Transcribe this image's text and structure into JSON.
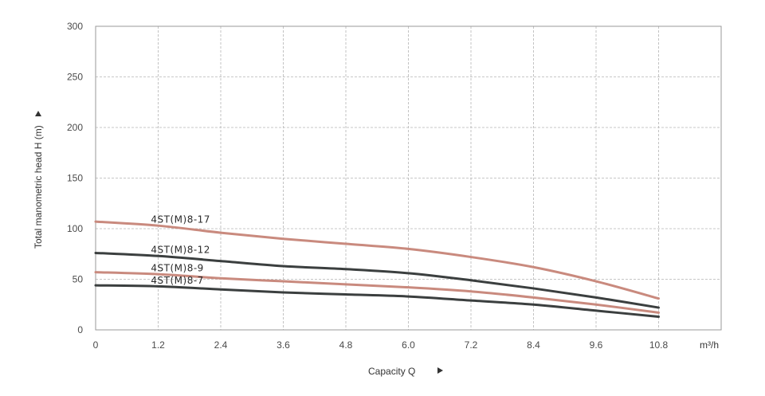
{
  "chart_data": {
    "type": "line",
    "xlabel": "Capacity Q",
    "xunit": "m³/h",
    "ylabel": "Total manometric head H (m)",
    "xlim": [
      0,
      12
    ],
    "ylim": [
      0,
      300
    ],
    "x_ticks": [
      "0",
      "1.2",
      "2.4",
      "3.6",
      "4.8",
      "6.0",
      "7.2",
      "8.4",
      "9.6",
      "10.8"
    ],
    "y_ticks": [
      "0",
      "50",
      "100",
      "150",
      "200",
      "250",
      "300"
    ],
    "grid": true,
    "x": [
      0,
      1.2,
      2.4,
      3.6,
      4.8,
      6.0,
      7.2,
      8.4,
      9.6,
      10.8
    ],
    "series": [
      {
        "name": "4ST(M)8-17",
        "color": "#c98a7e",
        "values": [
          107,
          103,
          96,
          90,
          85,
          80,
          72,
          62,
          48,
          31
        ]
      },
      {
        "name": "4ST(M)8-12",
        "color": "#3b3f3f",
        "values": [
          76,
          73,
          68,
          63,
          60,
          56,
          49,
          41,
          32,
          22
        ]
      },
      {
        "name": "4ST(M)8-9",
        "color": "#c98a7e",
        "values": [
          57,
          55,
          51,
          48,
          45,
          42,
          38,
          32,
          25,
          17
        ]
      },
      {
        "name": "4ST(M)8-7",
        "color": "#3b3f3f",
        "values": [
          44,
          43,
          40,
          37,
          35,
          33,
          29,
          25,
          19,
          13
        ]
      }
    ],
    "series_label_x": 1
  }
}
